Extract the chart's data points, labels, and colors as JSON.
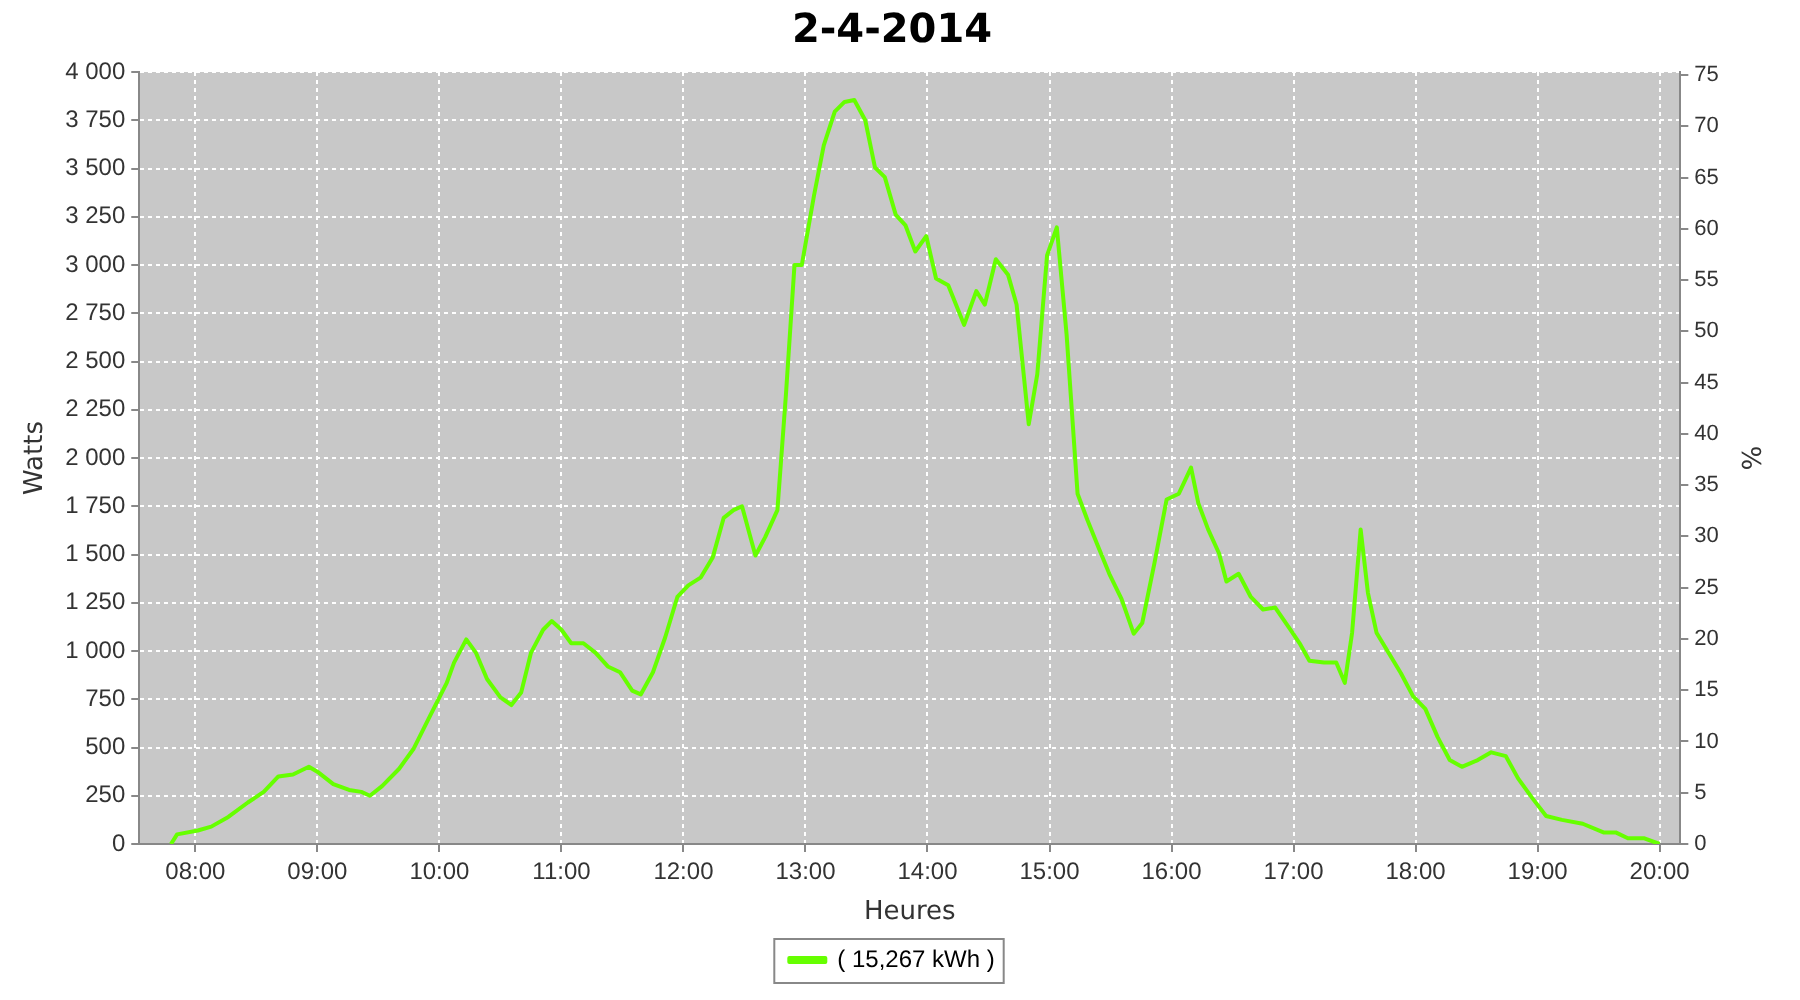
{
  "chart_data": {
    "type": "line",
    "title": "2-4-2014",
    "xlabel": "Heures",
    "ylabel": "Watts",
    "y2label": "%",
    "xlim": [
      7.54,
      20.17
    ],
    "xticks": [
      {
        "value": 8,
        "label": "08:00"
      },
      {
        "value": 9,
        "label": "09:00"
      },
      {
        "value": 10,
        "label": "10:00"
      },
      {
        "value": 11,
        "label": "11:00"
      },
      {
        "value": 12,
        "label": "12:00"
      },
      {
        "value": 13,
        "label": "13:00"
      },
      {
        "value": 14,
        "label": "14:00"
      },
      {
        "value": 15,
        "label": "15:00"
      },
      {
        "value": 16,
        "label": "16:00"
      },
      {
        "value": 17,
        "label": "17:00"
      },
      {
        "value": 18,
        "label": "18:00"
      },
      {
        "value": 19,
        "label": "19:00"
      },
      {
        "value": 20,
        "label": "20:00"
      }
    ],
    "ylim": [
      0,
      4000
    ],
    "yticks": [
      0,
      250,
      500,
      750,
      {
        "value": 1000,
        "label": "1 000"
      },
      {
        "value": 1250,
        "label": "1 250"
      },
      {
        "value": 1500,
        "label": "1 500"
      },
      {
        "value": 1750,
        "label": "1 750"
      },
      {
        "value": 2000,
        "label": "2 000"
      },
      {
        "value": 2250,
        "label": "2 250"
      },
      {
        "value": 2500,
        "label": "2 500"
      },
      {
        "value": 2750,
        "label": "2 750"
      },
      {
        "value": 3000,
        "label": "3 000"
      },
      {
        "value": 3250,
        "label": "3 250"
      },
      {
        "value": 3500,
        "label": "3 500"
      },
      {
        "value": 3750,
        "label": "3 750"
      },
      {
        "value": 4000,
        "label": "4 000"
      }
    ],
    "y2lim": [
      0,
      75.3
    ],
    "y2ticks": [
      0,
      5,
      10,
      15,
      20,
      25,
      30,
      35,
      40,
      45,
      50,
      55,
      60,
      65,
      70,
      75
    ],
    "grid": true,
    "legend": "bottom",
    "marker": "none",
    "line_style": "solid",
    "x": [
      7.8,
      7.85,
      8.02,
      8.13,
      8.27,
      8.43,
      8.56,
      8.68,
      8.8,
      8.93,
      9.01,
      9.13,
      9.26,
      9.36,
      9.43,
      9.53,
      9.67,
      9.79,
      9.92,
      10.06,
      10.12,
      10.22,
      10.3,
      10.39,
      10.5,
      10.59,
      10.67,
      10.75,
      10.85,
      10.92,
      11.0,
      11.08,
      11.18,
      11.28,
      11.38,
      11.48,
      11.58,
      11.65,
      11.75,
      11.85,
      11.95,
      12.04,
      12.14,
      12.24,
      12.33,
      12.41,
      12.48,
      12.54,
      12.59,
      12.67,
      12.77,
      12.84,
      12.91,
      12.97,
      13.07,
      13.15,
      13.24,
      13.32,
      13.4,
      13.49,
      13.57,
      13.65,
      13.74,
      13.82,
      13.9,
      13.99,
      14.07,
      14.17,
      14.3,
      14.4,
      14.47,
      14.56,
      14.66,
      14.73,
      14.83,
      14.9,
      14.98,
      15.06,
      15.14,
      15.23,
      15.31,
      15.39,
      15.49,
      15.59,
      15.69,
      15.76,
      15.86,
      15.96,
      16.06,
      16.16,
      16.22,
      16.3,
      16.39,
      16.45,
      16.55,
      16.65,
      16.75,
      16.85,
      16.97,
      17.05,
      17.13,
      17.25,
      17.35,
      17.42,
      17.48,
      17.55,
      17.61,
      17.68,
      17.78,
      17.88,
      17.98,
      18.08,
      18.18,
      18.28,
      18.38,
      18.51,
      18.62,
      18.74,
      18.84,
      18.96,
      19.07,
      19.2,
      19.37,
      19.54,
      19.64,
      19.74,
      19.87,
      20.0
    ],
    "series": [
      {
        "name": "( 15,267 kWh )",
        "color": "#66ff00",
        "values": [
          0,
          50,
          70,
          90,
          140,
          215,
          270,
          350,
          360,
          400,
          370,
          310,
          280,
          270,
          250,
          300,
          390,
          495,
          660,
          835,
          940,
          1060,
          990,
          855,
          760,
          720,
          785,
          990,
          1110,
          1155,
          1110,
          1040,
          1040,
          990,
          920,
          890,
          795,
          775,
          890,
          1070,
          1280,
          1340,
          1380,
          1485,
          1690,
          1730,
          1750,
          1610,
          1495,
          1590,
          1730,
          2330,
          3000,
          3000,
          3360,
          3620,
          3795,
          3845,
          3855,
          3750,
          3505,
          3455,
          3260,
          3205,
          3070,
          3150,
          2930,
          2895,
          2690,
          2865,
          2795,
          3030,
          2950,
          2795,
          2175,
          2435,
          3050,
          3195,
          2640,
          1815,
          1680,
          1555,
          1400,
          1270,
          1090,
          1145,
          1455,
          1785,
          1815,
          1950,
          1765,
          1630,
          1505,
          1360,
          1400,
          1280,
          1215,
          1225,
          1115,
          1040,
          950,
          940,
          940,
          835,
          1095,
          1630,
          1300,
          1095,
          990,
          885,
          765,
          700,
          555,
          435,
          400,
          435,
          475,
          455,
          340,
          235,
          145,
          125,
          105,
          60,
          60,
          30,
          30,
          0
        ]
      }
    ]
  }
}
